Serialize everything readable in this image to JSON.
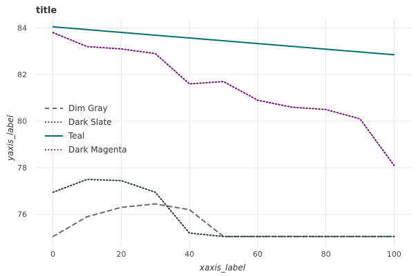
{
  "chart_data": {
    "type": "line",
    "title": "title",
    "xlabel": "xaxis_label",
    "ylabel": "yaxis_label",
    "xlim": [
      -5,
      105
    ],
    "ylim": [
      74.6,
      84.4
    ],
    "x_ticks": [
      0,
      20,
      40,
      60,
      80,
      100
    ],
    "x_tick_labels": [
      "0",
      "20",
      "40",
      "60",
      "80",
      "100"
    ],
    "y_ticks": [
      76,
      78,
      80,
      82,
      84
    ],
    "y_tick_labels": [
      "76",
      "78",
      "80",
      "82",
      "84"
    ],
    "grid": true,
    "legend_position": "center-left",
    "series": [
      {
        "name": "Dim Gray",
        "color": "#696969",
        "dash": "dashed",
        "x": [
          0,
          10,
          20,
          30,
          40,
          50,
          60,
          70,
          80,
          90,
          100
        ],
        "y": [
          75.05,
          75.9,
          76.3,
          76.45,
          76.2,
          75.05,
          75.05,
          75.05,
          75.05,
          75.05,
          75.05
        ]
      },
      {
        "name": "Dark Slate",
        "color": "#223a3a",
        "dash": "dotted",
        "x": [
          0,
          10,
          20,
          30,
          40,
          50,
          60,
          70,
          80,
          90,
          100
        ],
        "y": [
          76.95,
          77.5,
          77.45,
          76.95,
          75.2,
          75.05,
          75.05,
          75.05,
          75.05,
          75.05,
          75.05
        ]
      },
      {
        "name": "Teal",
        "color": "#006e6e",
        "dash": "solid",
        "x": [
          0,
          100
        ],
        "y": [
          84.05,
          82.85
        ]
      },
      {
        "name": "Dark Magenta",
        "color": "#7a0a78",
        "dash": "dotted",
        "x": [
          0,
          10,
          20,
          30,
          40,
          50,
          60,
          70,
          80,
          90,
          100
        ],
        "y": [
          83.8,
          83.2,
          83.1,
          82.9,
          81.6,
          81.7,
          80.9,
          80.6,
          80.5,
          80.1,
          78.1
        ]
      }
    ]
  }
}
